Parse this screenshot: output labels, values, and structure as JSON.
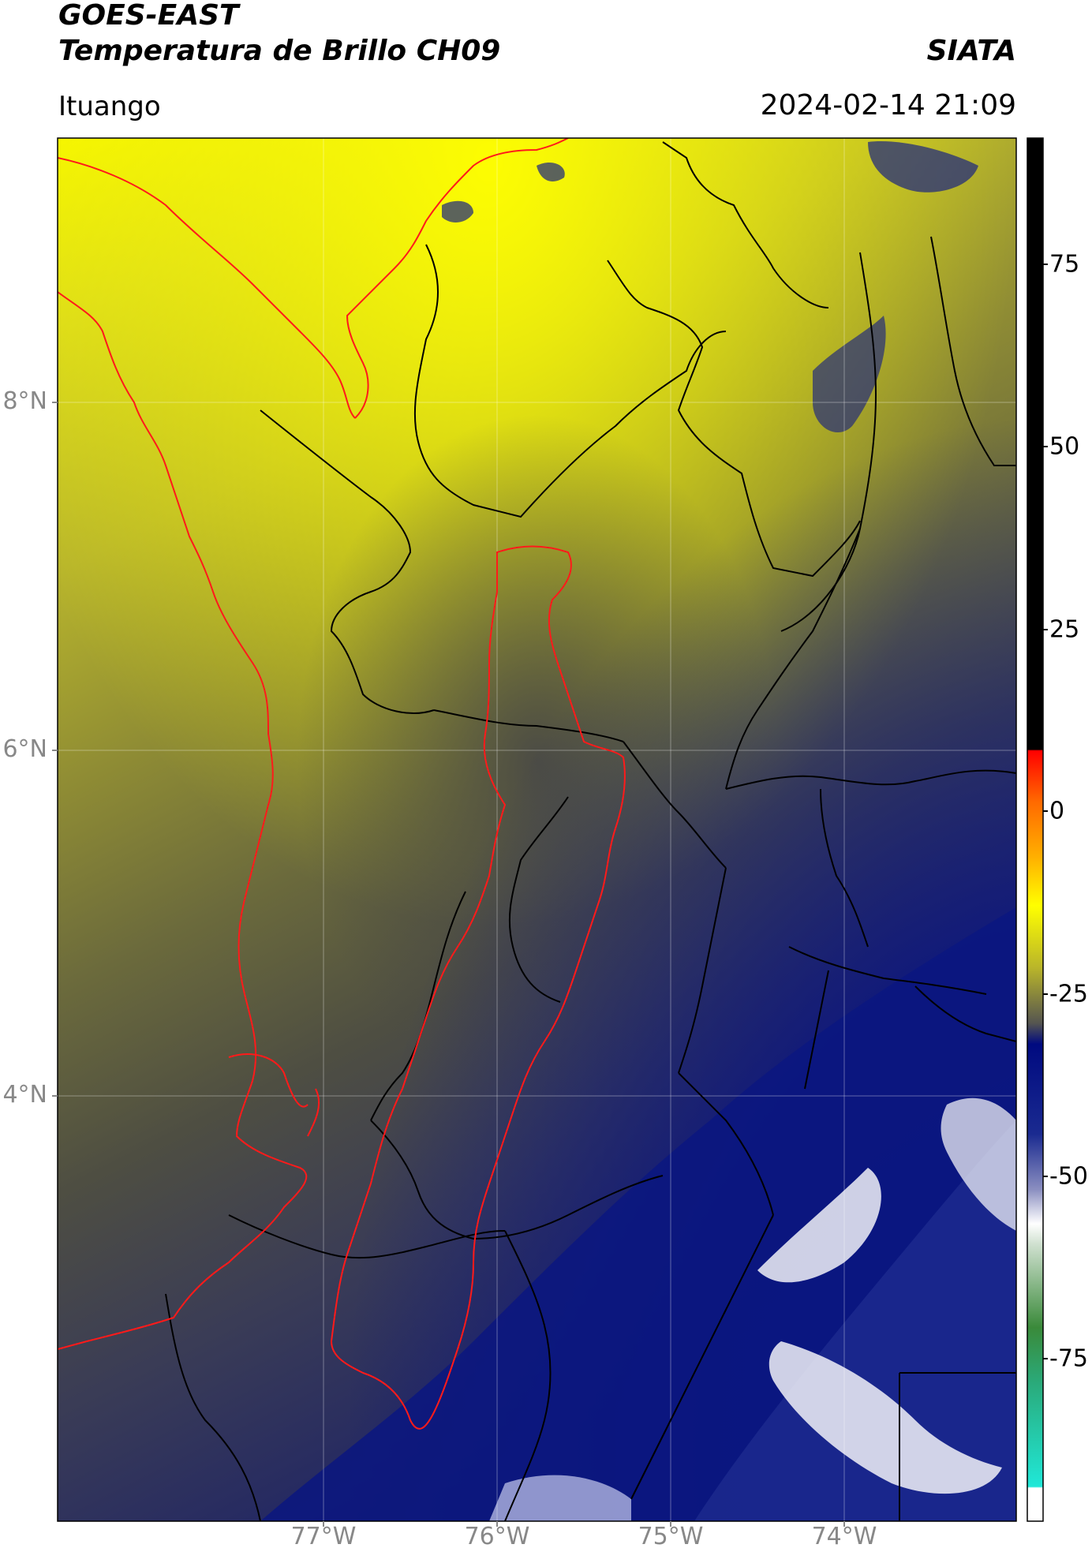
{
  "header": {
    "title_line1": "GOES-EAST",
    "title_line2": "Temperatura de Brillo CH09",
    "organization": "SIATA",
    "region": "Ituango",
    "timestamp": "2024-02-14 21:09"
  },
  "map": {
    "lat_labels": [
      "8°N",
      "6°N",
      "4°N"
    ],
    "lon_labels": [
      "77°W",
      "76°W",
      "75°W",
      "74°W"
    ]
  },
  "colorbar": {
    "ticks": [
      "75",
      "50",
      "25",
      "0",
      "-25",
      "-50",
      "-75"
    ],
    "colors": {
      "top": "#000000",
      "red": "#ff0000",
      "orange": "#ff8c00",
      "yellow": "#ffff00",
      "olive": "#9a9a30",
      "gray": "#4a4a4a",
      "navy": "#0a1a7a",
      "white": "#ffffff",
      "green": "#3a8a3a",
      "cyan": "#20e0d0"
    }
  }
}
